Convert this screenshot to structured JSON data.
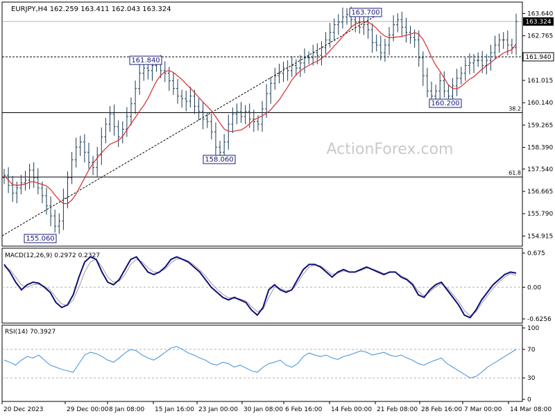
{
  "header": {
    "symbol_line": "EURJPY,H4  162.259 163.411 162.043 163.324"
  },
  "watermark": "ActionForex.com",
  "colors": {
    "price": "#17384f",
    "ma": "#d62b2b",
    "macd": "#0d0d7a",
    "signal": "#9a9a9a",
    "rsi": "#3b8fd9",
    "label_border": "#1a1a7a",
    "grid": "#000000"
  },
  "chart_data": [
    {
      "type": "line",
      "panel": "price",
      "y_ticks": [
        "163.640",
        "162.765",
        "161.015",
        "160.140",
        "159.265",
        "158.390",
        "157.540",
        "156.665",
        "155.790",
        "154.915"
      ],
      "ylim": [
        154.915,
        163.64
      ],
      "series": [],
      "close_approx": [
        157.3,
        156.9,
        156.6,
        156.8,
        157.0,
        157.1,
        157.5,
        157.2,
        156.8,
        156.5,
        156.1,
        155.7,
        155.3,
        155.5,
        156.4,
        157.2,
        157.9,
        158.4,
        158.6,
        158.2,
        157.8,
        157.6,
        158.1,
        158.8,
        159.3,
        159.7,
        159.2,
        158.8,
        159.1,
        159.6,
        160.1,
        160.7,
        161.3,
        161.5,
        161.4,
        161.6,
        161.7,
        161.4,
        161.3,
        161.0,
        160.7,
        160.4,
        160.3,
        160.2,
        160.4,
        160.0,
        159.8,
        159.5,
        159.4,
        159.0,
        158.4,
        158.2,
        158.6,
        159.3,
        159.7,
        159.8,
        159.6,
        159.8,
        159.5,
        159.4,
        159.3,
        159.9,
        160.5,
        160.9,
        161.2,
        161.3,
        161.5,
        161.4,
        161.6,
        161.5,
        161.7,
        161.9,
        161.9,
        162.1,
        162.0,
        162.3,
        162.6,
        162.9,
        163.2,
        163.3,
        163.5,
        163.6,
        163.4,
        163.3,
        163.1,
        163.2,
        163.0,
        162.5,
        162.4,
        162.1,
        162.4,
        162.8,
        163.2,
        163.4,
        163.1,
        162.9,
        162.7,
        162.6,
        161.9,
        161.2,
        160.6,
        160.4,
        160.6,
        161.0,
        160.6,
        160.4,
        160.8,
        161.1,
        161.3,
        161.6,
        161.7,
        161.8,
        161.8,
        161.6,
        161.8,
        162.1,
        162.4,
        162.6,
        162.6,
        162.4,
        162.3,
        163.32
      ],
      "annotations": [
        {
          "text": "163.700",
          "value": 163.7
        },
        {
          "text": "161.840",
          "value": 161.84
        },
        {
          "text": "160.200",
          "value": 160.2
        },
        {
          "text": "158.060",
          "value": 158.06
        },
        {
          "text": "155.060",
          "value": 155.06
        }
      ],
      "fib_levels": [
        {
          "label": "38.2",
          "value": 159.75
        },
        {
          "label": "61.8",
          "value": 157.23
        }
      ],
      "horizontal_levels": [
        161.94,
        163.324
      ],
      "current_price": "163.324",
      "level_label": "161.940",
      "trendline": {
        "from_value": 154.92,
        "to_value": 163.65
      }
    },
    {
      "type": "line",
      "panel": "macd",
      "title": "MACD(12,26,9) 0.2972 0.2327",
      "y_ticks": [
        "0.675",
        "0.00",
        "-0.6256"
      ],
      "ylim": [
        -0.6256,
        0.675
      ],
      "series": [],
      "macd_approx": [
        0.45,
        0.3,
        0.1,
        -0.05,
        0.05,
        0.1,
        0.08,
        0.0,
        -0.1,
        -0.3,
        -0.4,
        -0.35,
        -0.15,
        0.2,
        0.5,
        0.6,
        0.55,
        0.3,
        0.1,
        0.05,
        0.15,
        0.35,
        0.55,
        0.6,
        0.45,
        0.3,
        0.25,
        0.3,
        0.4,
        0.55,
        0.6,
        0.55,
        0.5,
        0.4,
        0.3,
        0.15,
        0.0,
        -0.1,
        -0.2,
        -0.25,
        -0.2,
        -0.25,
        -0.3,
        -0.45,
        -0.55,
        -0.4,
        -0.05,
        0.05,
        -0.05,
        -0.1,
        -0.05,
        0.15,
        0.35,
        0.45,
        0.45,
        0.4,
        0.3,
        0.2,
        0.3,
        0.35,
        0.3,
        0.3,
        0.35,
        0.4,
        0.35,
        0.3,
        0.25,
        0.3,
        0.3,
        0.2,
        0.15,
        0.05,
        -0.15,
        -0.2,
        -0.05,
        0.05,
        0.1,
        -0.05,
        -0.2,
        -0.35,
        -0.55,
        -0.6,
        -0.45,
        -0.25,
        -0.1,
        0.05,
        0.15,
        0.25,
        0.3,
        0.28
      ],
      "signal_approx": [
        0.4,
        0.35,
        0.2,
        0.05,
        0.0,
        0.05,
        0.06,
        0.02,
        -0.05,
        -0.2,
        -0.33,
        -0.36,
        -0.25,
        0.0,
        0.3,
        0.5,
        0.55,
        0.4,
        0.2,
        0.1,
        0.12,
        0.25,
        0.45,
        0.55,
        0.5,
        0.38,
        0.3,
        0.3,
        0.36,
        0.48,
        0.56,
        0.56,
        0.52,
        0.44,
        0.34,
        0.22,
        0.08,
        -0.04,
        -0.14,
        -0.21,
        -0.21,
        -0.23,
        -0.27,
        -0.38,
        -0.48,
        -0.44,
        -0.2,
        0.0,
        -0.02,
        -0.07,
        -0.06,
        0.08,
        0.26,
        0.4,
        0.44,
        0.42,
        0.34,
        0.25,
        0.28,
        0.32,
        0.3,
        0.3,
        0.33,
        0.38,
        0.36,
        0.32,
        0.27,
        0.29,
        0.3,
        0.23,
        0.17,
        0.08,
        -0.08,
        -0.17,
        -0.09,
        0.01,
        0.07,
        -0.01,
        -0.14,
        -0.28,
        -0.46,
        -0.56,
        -0.49,
        -0.32,
        -0.17,
        -0.02,
        0.1,
        0.2,
        0.27,
        0.2327
      ]
    },
    {
      "type": "line",
      "panel": "rsi",
      "title": "RSI(14) 70.3927",
      "y_ticks": [
        "100",
        "70",
        "30",
        "0"
      ],
      "ylim": [
        0,
        100
      ],
      "series": [],
      "rsi_approx": [
        55,
        52,
        48,
        55,
        60,
        58,
        62,
        55,
        48,
        45,
        42,
        40,
        38,
        50,
        62,
        66,
        64,
        60,
        55,
        52,
        58,
        65,
        70,
        68,
        62,
        58,
        55,
        60,
        66,
        72,
        74,
        70,
        65,
        62,
        58,
        55,
        50,
        48,
        52,
        50,
        45,
        48,
        44,
        40,
        38,
        45,
        50,
        52,
        55,
        48,
        45,
        50,
        60,
        65,
        62,
        60,
        62,
        58,
        56,
        60,
        62,
        65,
        68,
        66,
        62,
        64,
        66,
        62,
        60,
        62,
        58,
        55,
        50,
        48,
        52,
        55,
        58,
        50,
        45,
        40,
        35,
        30,
        32,
        38,
        45,
        50,
        55,
        60,
        65,
        70
      ]
    },
    {
      "type": "line",
      "panel": "time_axis",
      "categories": [
        "20 Dec 2023",
        "29 Dec 00:00",
        "8 Jan 08:00",
        "15 Jan 16:00",
        "23 Jan 00:00",
        "30 Jan 08:00",
        "6 Feb 16:00",
        "14 Feb 00:00",
        "21 Feb 08:00",
        "28 Feb 16:00",
        "7 Mar 00:00",
        "14 Mar 08:00"
      ],
      "series": []
    }
  ]
}
